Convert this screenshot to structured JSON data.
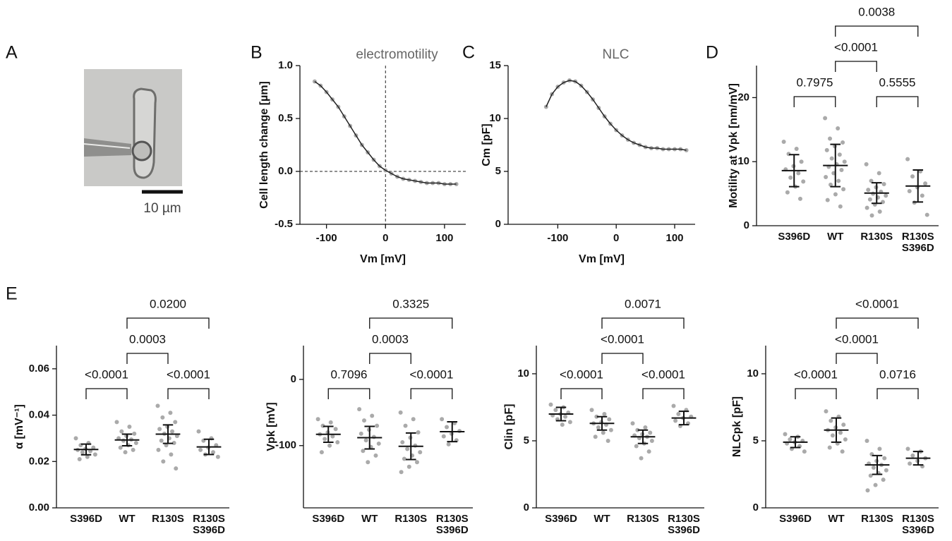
{
  "panel_labels": [
    "A",
    "B",
    "C",
    "D",
    "E"
  ],
  "scale_bar_label": "10 µm",
  "chart_data": [
    {
      "type": "line",
      "title": "electromotility",
      "ylabel": "Cell length change [µm]",
      "xlabel": "Vm [mV]",
      "x": [
        -120,
        -110,
        -100,
        -90,
        -80,
        -70,
        -60,
        -50,
        -40,
        -30,
        -20,
        -10,
        0,
        10,
        20,
        30,
        40,
        50,
        60,
        70,
        80,
        90,
        100,
        110,
        120
      ],
      "values": [
        0.85,
        0.81,
        0.75,
        0.68,
        0.61,
        0.52,
        0.43,
        0.34,
        0.25,
        0.18,
        0.11,
        0.05,
        0.01,
        -0.02,
        -0.05,
        -0.07,
        -0.08,
        -0.09,
        -0.1,
        -0.11,
        -0.11,
        -0.11,
        -0.12,
        -0.12,
        -0.12
      ],
      "xlim": [
        -145,
        136
      ],
      "xticks": [
        -100,
        0,
        100
      ],
      "ylim": [
        -0.5,
        1.0
      ],
      "yticks": [
        -0.5,
        {
          "value": 0,
          "label": "0.0"
        },
        0.5,
        {
          "value": 1,
          "label": "1.0"
        }
      ],
      "hline": 0,
      "vline": 0
    },
    {
      "type": "line",
      "title": "NLC",
      "ylabel": "Cm [pF]",
      "xlabel": "Vm [mV]",
      "x": [
        -120,
        -110,
        -100,
        -90,
        -80,
        -70,
        -60,
        -50,
        -40,
        -30,
        -20,
        -10,
        0,
        10,
        20,
        30,
        40,
        50,
        60,
        70,
        80,
        90,
        100,
        110,
        120
      ],
      "values": [
        11.1,
        12.3,
        13.0,
        13.4,
        13.6,
        13.5,
        13.1,
        12.5,
        11.8,
        11.0,
        10.2,
        9.5,
        8.9,
        8.4,
        8.0,
        7.7,
        7.5,
        7.3,
        7.2,
        7.2,
        7.1,
        7.1,
        7.1,
        7.1,
        7.0
      ],
      "xlim": [
        -185,
        135
      ],
      "xticks": [
        -100,
        0,
        100
      ],
      "ylim": [
        0,
        15
      ],
      "yticks": [
        0,
        5,
        10,
        15
      ]
    },
    {
      "type": "dot",
      "ylabel": "Motility at Vpk [nm/mV]",
      "categories": [
        "S396D",
        "WT",
        "R130S",
        "R130S\nS396D"
      ],
      "groups": [
        {
          "points": [
            13.1,
            12.0,
            11.2,
            10.0,
            9.3,
            8.8,
            8.2,
            7.5,
            6.9,
            6.1,
            5.2,
            4.2
          ],
          "mean": 8.6,
          "sd": 2.5
        },
        {
          "points": [
            16.8,
            15.2,
            13.6,
            13.0,
            12.4,
            11.8,
            11.1,
            10.5,
            10.0,
            9.6,
            9.2,
            8.7,
            8.2,
            7.6,
            7.0,
            6.4,
            5.7,
            4.9,
            4.0,
            3.0
          ],
          "mean": 9.4,
          "sd": 3.3
        },
        {
          "points": [
            9.6,
            8.2,
            7.0,
            6.5,
            6.0,
            5.6,
            5.3,
            5.0,
            4.7,
            4.4,
            4.1,
            3.7,
            3.3,
            2.8,
            2.2,
            1.6
          ],
          "mean": 5.1,
          "sd": 1.6
        },
        {
          "points": [
            10.4,
            8.5,
            7.7,
            6.6,
            6.0,
            5.4,
            4.7,
            3.6,
            1.7
          ],
          "mean": 6.2,
          "sd": 2.5
        }
      ],
      "ylim": [
        0,
        25
      ],
      "yticks": [
        0,
        10,
        20
      ],
      "comparisons": [
        {
          "groups": [
            0,
            1
          ],
          "label": "0.7975"
        },
        {
          "groups": [
            2,
            3
          ],
          "label": "0.5555"
        },
        {
          "groups": [
            1,
            2
          ],
          "label": "<0.0001"
        },
        {
          "groups": [
            1,
            3
          ],
          "label": "0.0038"
        }
      ]
    },
    {
      "type": "dot",
      "ylabel": "α [mV⁻¹]",
      "categories": [
        "S396D",
        "WT",
        "R130S",
        "R130S\nS396D"
      ],
      "groups": [
        {
          "points": [
            0.03,
            0.028,
            0.027,
            0.026,
            0.0255,
            0.025,
            0.0245,
            0.024,
            0.023,
            0.022,
            0.021
          ],
          "mean": 0.0252,
          "sd": 0.0023
        },
        {
          "points": [
            0.037,
            0.035,
            0.033,
            0.032,
            0.031,
            0.03,
            0.0295,
            0.029,
            0.028,
            0.027,
            0.026,
            0.025,
            0.024
          ],
          "mean": 0.0293,
          "sd": 0.0025
        },
        {
          "points": [
            0.044,
            0.041,
            0.039,
            0.037,
            0.035,
            0.034,
            0.033,
            0.032,
            0.031,
            0.03,
            0.029,
            0.028,
            0.027,
            0.025,
            0.023,
            0.02,
            0.017
          ],
          "mean": 0.0318,
          "sd": 0.004
        },
        {
          "points": [
            0.033,
            0.03,
            0.029,
            0.027,
            0.026,
            0.025,
            0.024,
            0.023,
            0.022
          ],
          "mean": 0.0263,
          "sd": 0.0033
        }
      ],
      "ylim": [
        0,
        0.07
      ],
      "yticks": [
        {
          "value": 0,
          "label": "0.00"
        },
        0.02,
        0.04,
        0.06
      ],
      "comparisons": [
        {
          "groups": [
            0,
            1
          ],
          "label": "<0.0001"
        },
        {
          "groups": [
            2,
            3
          ],
          "label": "<0.0001"
        },
        {
          "groups": [
            1,
            2
          ],
          "label": "0.0003"
        },
        {
          "groups": [
            1,
            3
          ],
          "label": "0.0200"
        }
      ]
    },
    {
      "type": "dot",
      "ylabel": "Vpk [mV]",
      "categories": [
        "S396D",
        "WT",
        "R130S",
        "R130S\nS396D"
      ],
      "groups": [
        {
          "points": [
            -60,
            -65,
            -70,
            -75,
            -80,
            -83,
            -86,
            -90,
            -95,
            -100,
            -110
          ],
          "mean": -83,
          "sd": 12
        },
        {
          "points": [
            -45,
            -55,
            -62,
            -70,
            -76,
            -82,
            -87,
            -92,
            -97,
            -102,
            -108,
            -115,
            -125
          ],
          "mean": -88,
          "sd": 17
        },
        {
          "points": [
            -50,
            -60,
            -70,
            -80,
            -88,
            -95,
            -100,
            -105,
            -110,
            -115,
            -120,
            -125,
            -132,
            -140
          ],
          "mean": -101,
          "sd": 20
        },
        {
          "points": [
            -60,
            -66,
            -72,
            -78,
            -82,
            -86,
            -92,
            -98
          ],
          "mean": -79,
          "sd": 15
        }
      ],
      "ylim": [
        -194,
        51
      ],
      "yticks": [
        -100,
        0
      ],
      "comparisons": [
        {
          "groups": [
            0,
            1
          ],
          "label": "0.7096"
        },
        {
          "groups": [
            2,
            3
          ],
          "label": "<0.0001"
        },
        {
          "groups": [
            1,
            2
          ],
          "label": "0.0003"
        },
        {
          "groups": [
            1,
            3
          ],
          "label": "0.3325"
        }
      ]
    },
    {
      "type": "dot",
      "ylabel": "Clin [pF]",
      "categories": [
        "S396D",
        "WT",
        "R130S",
        "R130S\nS396D"
      ],
      "groups": [
        {
          "points": [
            7.7,
            7.5,
            7.3,
            7.1,
            7.0,
            6.9,
            6.8,
            6.6,
            6.4,
            6.2
          ],
          "mean": 7.0,
          "sd": 0.5
        },
        {
          "points": [
            7.3,
            7.0,
            6.8,
            6.6,
            6.4,
            6.3,
            6.2,
            6.0,
            5.8,
            5.6,
            5.3,
            5.0
          ],
          "mean": 6.3,
          "sd": 0.5
        },
        {
          "points": [
            6.3,
            6.0,
            5.8,
            5.6,
            5.5,
            5.4,
            5.3,
            5.2,
            5.0,
            4.8,
            4.6,
            4.2,
            3.7
          ],
          "mean": 5.3,
          "sd": 0.5
        },
        {
          "points": [
            7.6,
            7.3,
            7.0,
            6.8,
            6.7,
            6.5,
            6.3,
            6.1
          ],
          "mean": 6.7,
          "sd": 0.5
        }
      ],
      "ylim": [
        0,
        12.1
      ],
      "yticks": [
        0,
        5,
        10
      ],
      "comparisons": [
        {
          "groups": [
            0,
            1
          ],
          "label": "<0.0001"
        },
        {
          "groups": [
            2,
            3
          ],
          "label": "<0.0001"
        },
        {
          "groups": [
            1,
            2
          ],
          "label": "<0.0001"
        },
        {
          "groups": [
            1,
            3
          ],
          "label": "0.0071"
        }
      ]
    },
    {
      "type": "dot",
      "ylabel": "NLCpk [pF]",
      "categories": [
        "S396D",
        "WT",
        "R130S",
        "R130S\nS396D"
      ],
      "groups": [
        {
          "points": [
            5.5,
            5.3,
            5.1,
            5.0,
            4.9,
            4.8,
            4.6,
            4.4,
            4.2
          ],
          "mean": 4.9,
          "sd": 0.4
        },
        {
          "points": [
            7.2,
            6.8,
            6.5,
            6.2,
            6.0,
            5.8,
            5.6,
            5.4,
            5.1,
            4.8,
            4.5,
            4.2
          ],
          "mean": 5.8,
          "sd": 0.9
        },
        {
          "points": [
            5.0,
            4.4,
            4.0,
            3.7,
            3.5,
            3.3,
            3.2,
            3.0,
            2.8,
            2.6,
            2.4,
            2.1,
            1.7,
            1.3
          ],
          "mean": 3.2,
          "sd": 0.7
        },
        {
          "points": [
            4.4,
            4.2,
            3.9,
            3.7,
            3.5,
            3.3,
            3.1
          ],
          "mean": 3.7,
          "sd": 0.5
        }
      ],
      "ylim": [
        0,
        12.1
      ],
      "yticks": [
        0,
        5,
        10
      ],
      "comparisons": [
        {
          "groups": [
            0,
            1
          ],
          "label": "<0.0001"
        },
        {
          "groups": [
            2,
            3
          ],
          "label": "0.0716"
        },
        {
          "groups": [
            1,
            2
          ],
          "label": "<0.0001"
        },
        {
          "groups": [
            1,
            3
          ],
          "label": "<0.0001"
        }
      ]
    }
  ]
}
